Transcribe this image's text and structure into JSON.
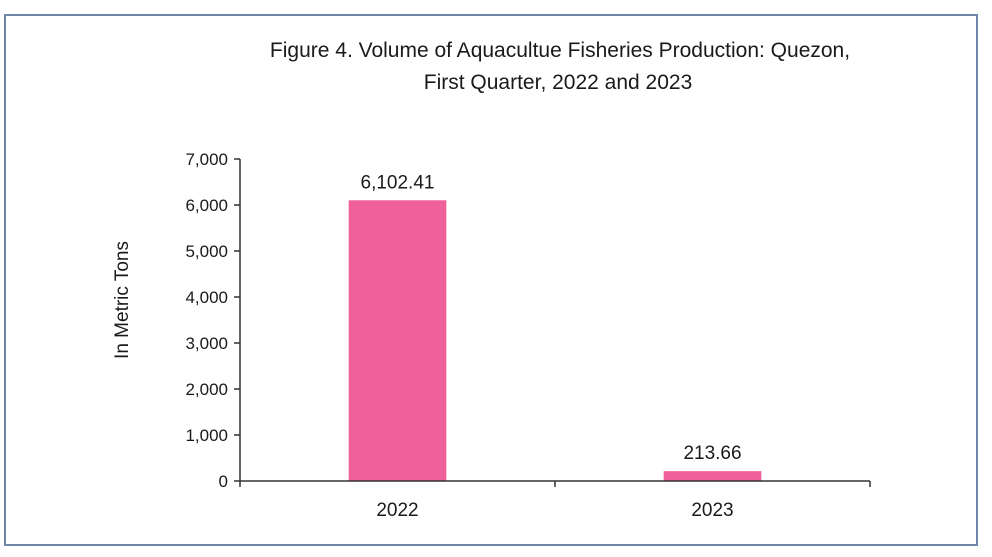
{
  "chart_data": {
    "type": "bar",
    "title_lines": [
      "Figure 4. Volume of Aquacultue Fisheries  Production: Quezon,",
      "First Quarter, 2022 and 2023"
    ],
    "ylabel": "In Metric Tons",
    "xlabel": "",
    "categories": [
      "2022",
      "2023"
    ],
    "values": [
      6102.41,
      213.66
    ],
    "data_labels": [
      "6,102.41",
      "213.66"
    ],
    "ylim": [
      0,
      7000
    ],
    "yticks": [
      0,
      1000,
      2000,
      3000,
      4000,
      5000,
      6000,
      7000
    ],
    "ytick_labels": [
      "0",
      "1,000",
      "2,000",
      "3,000",
      "4,000",
      "5,000",
      "6,000",
      "7,000"
    ],
    "bar_color": "#f0609a",
    "grid": false,
    "legend": "none"
  }
}
